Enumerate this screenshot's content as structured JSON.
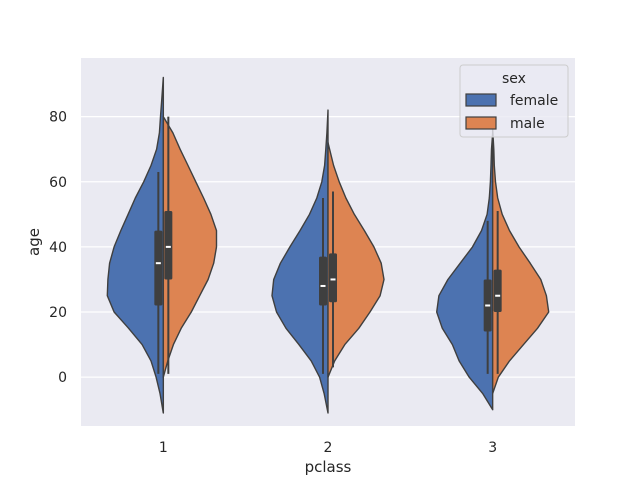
{
  "chart_data": {
    "type": "violin",
    "split": true,
    "xlabel": "pclass",
    "ylabel": "age",
    "categories": [
      "1",
      "2",
      "3"
    ],
    "ylim": [
      -15,
      98
    ],
    "yticks": [
      0,
      20,
      40,
      60,
      80
    ],
    "grid": true,
    "legend": {
      "title": "sex",
      "placement": "top-right",
      "entries": [
        {
          "name": "female",
          "color": "#4c72b0"
        },
        {
          "name": "male",
          "color": "#dd8452"
        }
      ]
    },
    "series": [
      {
        "name": "female",
        "color": "#4c72b0",
        "violins": [
          {
            "category": "1",
            "min": -11,
            "max": 92,
            "whisker": [
              1,
              63
            ],
            "q1": 22,
            "median": 35,
            "q3": 45,
            "profile": [
              [
                -11,
                0
              ],
              [
                -5,
                0.06
              ],
              [
                0,
                0.13
              ],
              [
                5,
                0.22
              ],
              [
                10,
                0.38
              ],
              [
                15,
                0.62
              ],
              [
                20,
                0.88
              ],
              [
                25,
                1.0
              ],
              [
                30,
                0.99
              ],
              [
                35,
                0.96
              ],
              [
                40,
                0.88
              ],
              [
                45,
                0.76
              ],
              [
                50,
                0.63
              ],
              [
                55,
                0.5
              ],
              [
                60,
                0.35
              ],
              [
                65,
                0.22
              ],
              [
                70,
                0.12
              ],
              [
                75,
                0.07
              ],
              [
                80,
                0.05
              ],
              [
                85,
                0.03
              ],
              [
                92,
                0
              ]
            ]
          },
          {
            "category": "2",
            "min": -11,
            "max": 82,
            "whisker": [
              1,
              55
            ],
            "q1": 22,
            "median": 28,
            "q3": 37,
            "profile": [
              [
                -11,
                0
              ],
              [
                -5,
                0.07
              ],
              [
                0,
                0.15
              ],
              [
                5,
                0.3
              ],
              [
                10,
                0.52
              ],
              [
                15,
                0.75
              ],
              [
                20,
                0.92
              ],
              [
                25,
                1.0
              ],
              [
                30,
                0.97
              ],
              [
                35,
                0.85
              ],
              [
                40,
                0.68
              ],
              [
                45,
                0.5
              ],
              [
                50,
                0.33
              ],
              [
                55,
                0.2
              ],
              [
                60,
                0.11
              ],
              [
                65,
                0.06
              ],
              [
                70,
                0.04
              ],
              [
                75,
                0.02
              ],
              [
                82,
                0
              ]
            ]
          },
          {
            "category": "3",
            "min": -10,
            "max": 75,
            "whisker": [
              1,
              48
            ],
            "q1": 14,
            "median": 22,
            "q3": 30,
            "profile": [
              [
                -10,
                0
              ],
              [
                -5,
                0.18
              ],
              [
                0,
                0.42
              ],
              [
                5,
                0.6
              ],
              [
                10,
                0.72
              ],
              [
                15,
                0.9
              ],
              [
                20,
                1.0
              ],
              [
                25,
                0.96
              ],
              [
                30,
                0.8
              ],
              [
                35,
                0.58
              ],
              [
                40,
                0.36
              ],
              [
                45,
                0.2
              ],
              [
                50,
                0.1
              ],
              [
                55,
                0.06
              ],
              [
                60,
                0.04
              ],
              [
                65,
                0.03
              ],
              [
                70,
                0.02
              ],
              [
                75,
                0
              ]
            ]
          }
        ]
      },
      {
        "name": "male",
        "color": "#dd8452",
        "violins": [
          {
            "category": "1",
            "min": 0,
            "max": 80,
            "whisker": [
              1,
              80
            ],
            "q1": 30,
            "median": 40,
            "q3": 51,
            "profile": [
              [
                0,
                0
              ],
              [
                5,
                0.08
              ],
              [
                10,
                0.18
              ],
              [
                15,
                0.32
              ],
              [
                20,
                0.5
              ],
              [
                25,
                0.65
              ],
              [
                30,
                0.8
              ],
              [
                35,
                0.9
              ],
              [
                40,
                0.95
              ],
              [
                45,
                0.95
              ],
              [
                50,
                0.85
              ],
              [
                55,
                0.72
              ],
              [
                60,
                0.58
              ],
              [
                65,
                0.44
              ],
              [
                70,
                0.3
              ],
              [
                75,
                0.17
              ],
              [
                80,
                0
              ]
            ]
          },
          {
            "category": "2",
            "min": 0,
            "max": 72,
            "whisker": [
              3,
              57
            ],
            "q1": 23,
            "median": 30,
            "q3": 38,
            "profile": [
              [
                0,
                0
              ],
              [
                5,
                0.12
              ],
              [
                10,
                0.3
              ],
              [
                15,
                0.55
              ],
              [
                20,
                0.75
              ],
              [
                25,
                0.93
              ],
              [
                30,
                1.0
              ],
              [
                35,
                0.95
              ],
              [
                40,
                0.82
              ],
              [
                45,
                0.65
              ],
              [
                50,
                0.47
              ],
              [
                55,
                0.32
              ],
              [
                60,
                0.2
              ],
              [
                65,
                0.1
              ],
              [
                72,
                0
              ]
            ]
          },
          {
            "category": "3",
            "min": -5,
            "max": 76,
            "whisker": [
              1,
              51
            ],
            "q1": 20,
            "median": 25,
            "q3": 33,
            "profile": [
              [
                -5,
                0
              ],
              [
                0,
                0.1
              ],
              [
                5,
                0.3
              ],
              [
                10,
                0.55
              ],
              [
                15,
                0.8
              ],
              [
                20,
                1.0
              ],
              [
                25,
                0.96
              ],
              [
                30,
                0.86
              ],
              [
                35,
                0.67
              ],
              [
                40,
                0.47
              ],
              [
                45,
                0.3
              ],
              [
                50,
                0.17
              ],
              [
                55,
                0.09
              ],
              [
                60,
                0.05
              ],
              [
                65,
                0.03
              ],
              [
                70,
                0.02
              ],
              [
                76,
                0
              ]
            ]
          }
        ]
      }
    ]
  }
}
